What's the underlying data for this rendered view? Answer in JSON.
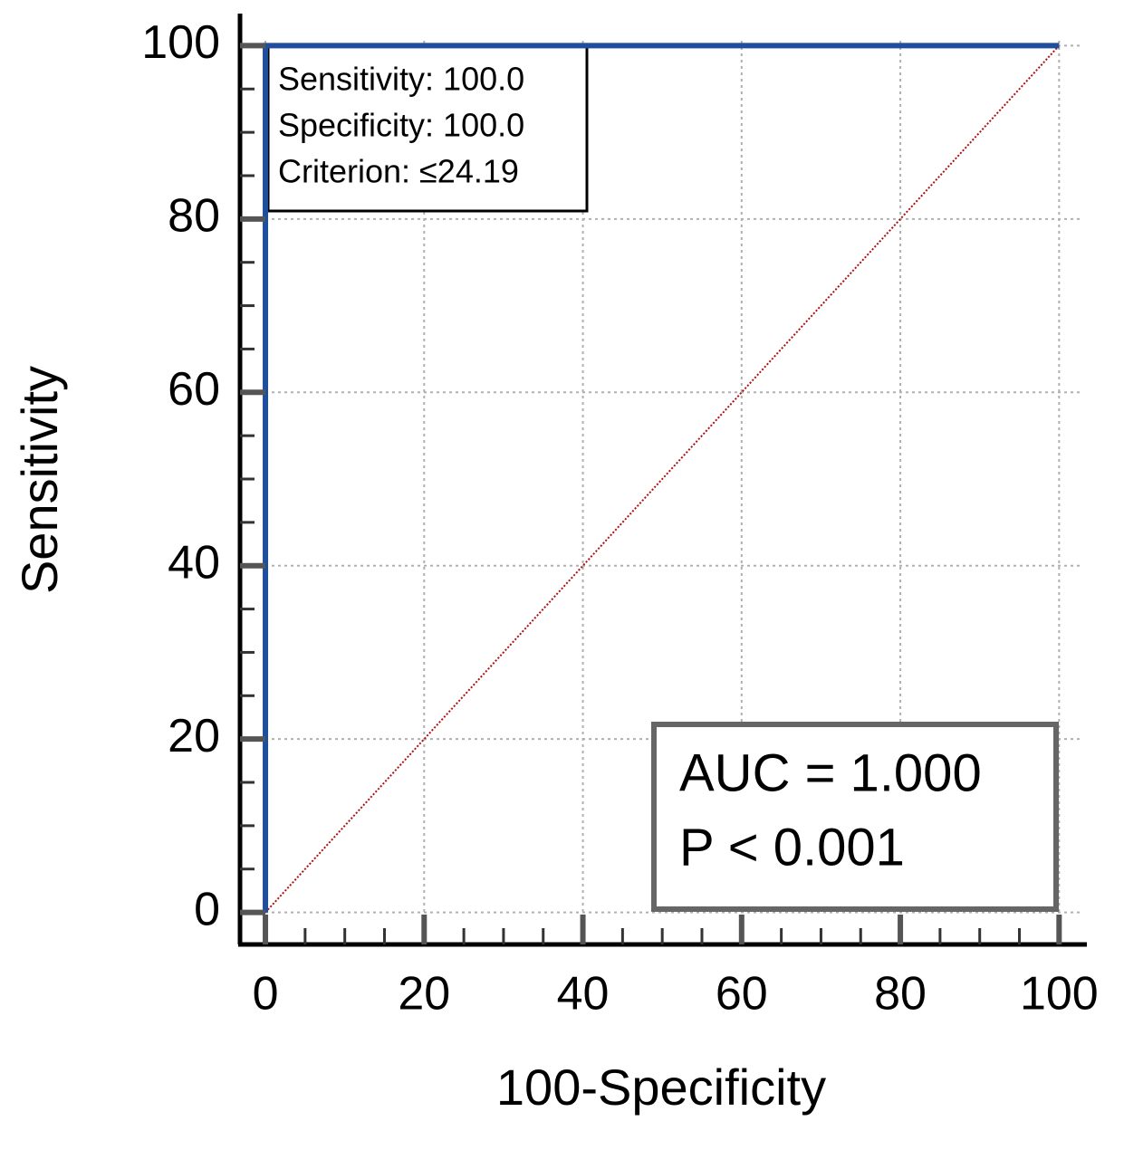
{
  "chart_data": {
    "type": "line",
    "x_label": "100-Specificity",
    "y_label": "Sensitivity",
    "series": [
      {
        "color": "#1f4e9c",
        "dash": "solid",
        "x": [
          0,
          0,
          100
        ],
        "values": [
          0,
          100,
          100
        ]
      },
      {
        "color": "#b01010",
        "dash": "dotted",
        "x": [
          0,
          100
        ],
        "values": [
          0,
          100
        ]
      }
    ],
    "xlim": [
      -3.2,
      103.5
    ],
    "ylim": [
      -3.7,
      103.7
    ],
    "xticks": [
      0,
      20,
      40,
      60,
      80,
      100
    ],
    "yticks": [
      0,
      20,
      40,
      60,
      80,
      100
    ],
    "xminorticks": [
      5,
      10,
      15,
      25,
      30,
      35,
      45,
      50,
      55,
      65,
      70,
      75,
      85,
      90,
      95
    ],
    "yminorticks": [
      5,
      10,
      15,
      25,
      30,
      35,
      45,
      50,
      55,
      65,
      70,
      75,
      85,
      90,
      95
    ],
    "grid": true,
    "annotations": [
      [
        "Sensitivity: 100.0",
        "Specificity: 100.0",
        "Criterion: ≤24.19"
      ],
      [
        "AUC = 1.000",
        "P < 0.001"
      ]
    ]
  }
}
